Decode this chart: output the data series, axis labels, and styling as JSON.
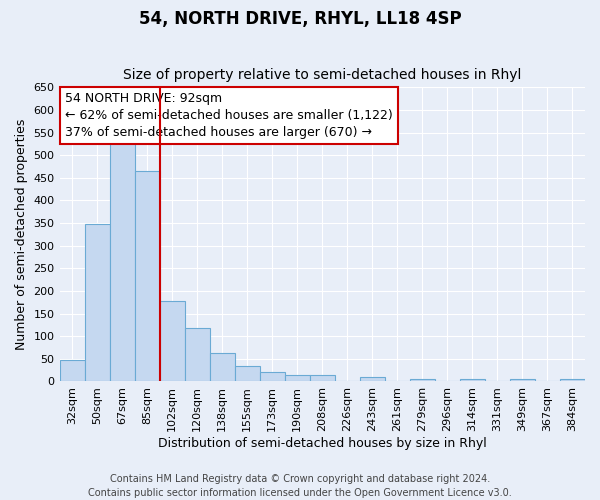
{
  "title": "54, NORTH DRIVE, RHYL, LL18 4SP",
  "subtitle": "Size of property relative to semi-detached houses in Rhyl",
  "xlabel": "Distribution of semi-detached houses by size in Rhyl",
  "ylabel": "Number of semi-detached properties",
  "bar_labels": [
    "32sqm",
    "50sqm",
    "67sqm",
    "85sqm",
    "102sqm",
    "120sqm",
    "138sqm",
    "155sqm",
    "173sqm",
    "190sqm",
    "208sqm",
    "226sqm",
    "243sqm",
    "261sqm",
    "279sqm",
    "296sqm",
    "314sqm",
    "331sqm",
    "349sqm",
    "367sqm",
    "384sqm"
  ],
  "bar_values": [
    47,
    348,
    535,
    465,
    178,
    118,
    62,
    35,
    22,
    15,
    15,
    0,
    10,
    0,
    5,
    0,
    5,
    0,
    5,
    0,
    5
  ],
  "bar_color": "#c5d8f0",
  "bar_edge_color": "#6aaad4",
  "property_line_label": "54 NORTH DRIVE: 92sqm",
  "annotation_smaller": "← 62% of semi-detached houses are smaller (1,122)",
  "annotation_larger": "37% of semi-detached houses are larger (670) →",
  "annotation_box_color": "#ffffff",
  "annotation_box_edge": "#cc0000",
  "vline_color": "#cc0000",
  "vline_position": 3.5,
  "ylim": [
    0,
    650
  ],
  "yticks": [
    0,
    50,
    100,
    150,
    200,
    250,
    300,
    350,
    400,
    450,
    500,
    550,
    600,
    650
  ],
  "bg_color": "#e8eef8",
  "plot_bg_color": "#e8eef8",
  "grid_color": "#ffffff",
  "footer": "Contains HM Land Registry data © Crown copyright and database right 2024.\nContains public sector information licensed under the Open Government Licence v3.0.",
  "title_fontsize": 12,
  "subtitle_fontsize": 10,
  "axis_label_fontsize": 9,
  "tick_fontsize": 8,
  "footer_fontsize": 7,
  "annotation_fontsize": 9
}
